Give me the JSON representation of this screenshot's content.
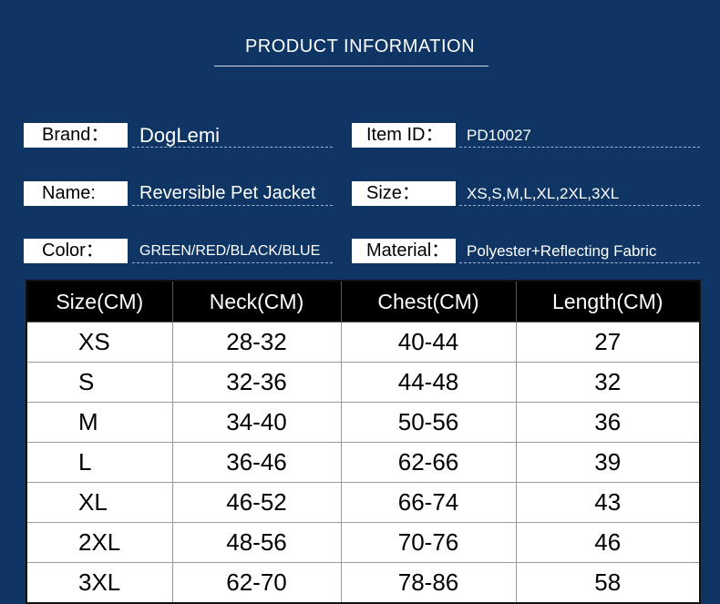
{
  "header": {
    "title": "PRODUCT INFORMATION"
  },
  "info": [
    {
      "label": "Brand：",
      "value": "DogLemi"
    },
    {
      "label": "Item ID：",
      "value": "PD10027"
    },
    {
      "label": "Name:",
      "value": "Reversible Pet Jacket"
    },
    {
      "label": "Size：",
      "value": "XS,S,M,L,XL,2XL,3XL"
    },
    {
      "label": "Color：",
      "value": "GREEN/RED/BLACK/BLUE"
    },
    {
      "label": "Material：",
      "value": "Polyester+Reflecting Fabric"
    }
  ],
  "table": {
    "columns": [
      "Size(CM)",
      "Neck(CM)",
      "Chest(CM)",
      "Length(CM)"
    ],
    "rows": [
      [
        "XS",
        "28-32",
        "40-44",
        "27"
      ],
      [
        "S",
        "32-36",
        "44-48",
        "32"
      ],
      [
        "M",
        "34-40",
        "50-56",
        "36"
      ],
      [
        "L",
        "36-46",
        "62-66",
        "39"
      ],
      [
        "XL",
        "46-52",
        "66-74",
        "43"
      ],
      [
        "2XL",
        "48-56",
        "70-76",
        "46"
      ],
      [
        "3XL",
        "62-70",
        "78-86",
        "58"
      ]
    ]
  }
}
